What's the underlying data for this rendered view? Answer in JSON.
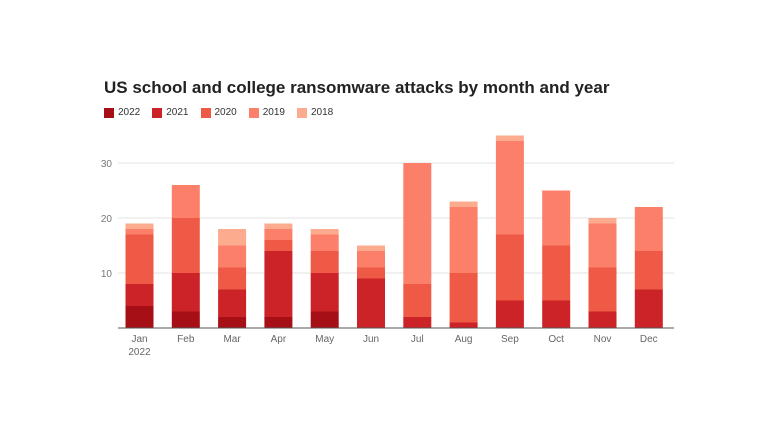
{
  "chart_data": {
    "type": "bar",
    "stacked": true,
    "title": "US school and college ransomware attacks by month and year",
    "categories": [
      "Jan",
      "Feb",
      "Mar",
      "Apr",
      "May",
      "Jun",
      "Jul",
      "Aug",
      "Sep",
      "Oct",
      "Nov",
      "Dec"
    ],
    "category_sublabels": [
      "2022",
      "",
      "",
      "",
      "",
      "",
      "",
      "",
      "",
      "",
      "",
      ""
    ],
    "series": [
      {
        "name": "2022",
        "color": "#a50f15",
        "values": [
          4,
          3,
          2,
          2,
          3,
          0,
          0,
          0,
          0,
          0,
          0,
          0
        ]
      },
      {
        "name": "2021",
        "color": "#cb2327",
        "values": [
          4,
          7,
          5,
          12,
          7,
          9,
          2,
          1,
          5,
          5,
          3,
          7
        ]
      },
      {
        "name": "2020",
        "color": "#ee5a45",
        "values": [
          9,
          10,
          4,
          2,
          4,
          2,
          6,
          9,
          12,
          10,
          8,
          7
        ]
      },
      {
        "name": "2019",
        "color": "#fb7f69",
        "values": [
          1,
          6,
          4,
          2,
          3,
          3,
          22,
          12,
          17,
          10,
          8,
          8
        ]
      },
      {
        "name": "2018",
        "color": "#fcab8f",
        "values": [
          1,
          0,
          3,
          1,
          1,
          1,
          0,
          1,
          1,
          0,
          1,
          0
        ]
      }
    ],
    "yticks": [
      10,
      20,
      30
    ],
    "ylim": [
      0,
      35
    ],
    "grid": true,
    "legend_position": "top-left"
  }
}
